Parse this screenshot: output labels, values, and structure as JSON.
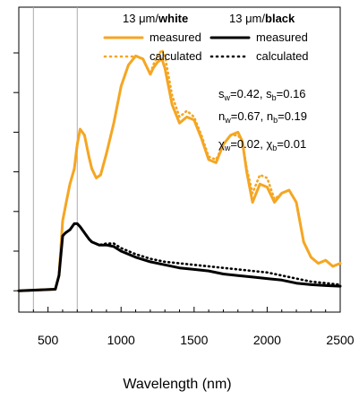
{
  "chart_data": {
    "type": "line",
    "xlabel": "Wavelength (nm)",
    "ylabel": "",
    "xlim": [
      300,
      2500
    ],
    "ylim": [
      0,
      1
    ],
    "x_ticks": [
      500,
      1000,
      1500,
      2000,
      2500
    ],
    "x_tick_labels": [
      "500",
      "1000",
      "1500",
      "2000",
      "2500"
    ],
    "y_tick_values": [
      0.07,
      0.2,
      0.33,
      0.46,
      0.59,
      0.72,
      0.85
    ],
    "vertical_lines": [
      400,
      700
    ],
    "legend": {
      "placement": "top",
      "groups": [
        {
          "head": "13 μm/",
          "head_bold": "white",
          "color": "#f5a623",
          "entries": [
            {
              "label": "measured",
              "style": "solid"
            },
            {
              "label": "calculated",
              "style": "dotted"
            }
          ]
        },
        {
          "head": "13 μm/",
          "head_bold": "black",
          "color": "#000000",
          "entries": [
            {
              "label": "measured",
              "style": "solid"
            },
            {
              "label": "calculated",
              "style": "dotted"
            }
          ]
        }
      ]
    },
    "annotations": [
      {
        "parts": [
          {
            "t": "s"
          },
          {
            "t": "w",
            "sub": true
          },
          {
            "t": "=0.42, s"
          },
          {
            "t": "b",
            "sub": true
          },
          {
            "t": "=0.16"
          }
        ]
      },
      {
        "parts": [
          {
            "t": "n"
          },
          {
            "t": "w",
            "sub": true
          },
          {
            "t": "=0.67, n"
          },
          {
            "t": "b",
            "sub": true
          },
          {
            "t": "=0.19"
          }
        ]
      },
      {
        "parts": [
          {
            "t": "χ"
          },
          {
            "t": "w",
            "sub": true
          },
          {
            "t": "=0.02, χ"
          },
          {
            "t": "b",
            "sub": true
          },
          {
            "t": "=0.01"
          }
        ]
      }
    ],
    "series": [
      {
        "name": "13 μm/white measured",
        "color": "#f5a623",
        "style": "solid",
        "x": [
          300,
          550,
          575,
          600,
          625,
          650,
          680,
          700,
          720,
          750,
          780,
          800,
          830,
          860,
          900,
          950,
          1000,
          1050,
          1100,
          1150,
          1180,
          1200,
          1220,
          1250,
          1280,
          1300,
          1350,
          1400,
          1450,
          1500,
          1550,
          1600,
          1650,
          1700,
          1750,
          1800,
          1830,
          1860,
          1900,
          1950,
          2000,
          2050,
          2100,
          2150,
          2200,
          2250,
          2300,
          2350,
          2400,
          2450,
          2500
        ],
        "y": [
          0.07,
          0.075,
          0.12,
          0.3,
          0.36,
          0.42,
          0.47,
          0.55,
          0.6,
          0.58,
          0.51,
          0.47,
          0.44,
          0.45,
          0.52,
          0.62,
          0.74,
          0.81,
          0.84,
          0.83,
          0.8,
          0.78,
          0.8,
          0.82,
          0.83,
          0.8,
          0.68,
          0.62,
          0.64,
          0.63,
          0.57,
          0.5,
          0.49,
          0.55,
          0.58,
          0.59,
          0.56,
          0.46,
          0.36,
          0.42,
          0.41,
          0.36,
          0.39,
          0.4,
          0.36,
          0.23,
          0.18,
          0.16,
          0.17,
          0.15,
          0.16
        ]
      },
      {
        "name": "13 μm/white calculated",
        "color": "#f5a623",
        "style": "dotted",
        "x": [
          300,
          550,
          575,
          600,
          625,
          650,
          680,
          700,
          720,
          750,
          780,
          800,
          830,
          860,
          900,
          950,
          1000,
          1050,
          1100,
          1150,
          1180,
          1200,
          1220,
          1250,
          1280,
          1300,
          1350,
          1400,
          1450,
          1500,
          1550,
          1600,
          1650,
          1700,
          1750,
          1800,
          1830,
          1860,
          1900,
          1950,
          2000,
          2050,
          2100,
          2150,
          2200,
          2250,
          2300,
          2350,
          2400,
          2450,
          2500
        ],
        "y": [
          0.07,
          0.075,
          0.12,
          0.3,
          0.36,
          0.42,
          0.47,
          0.55,
          0.6,
          0.58,
          0.51,
          0.47,
          0.44,
          0.45,
          0.52,
          0.62,
          0.74,
          0.81,
          0.84,
          0.83,
          0.8,
          0.78,
          0.81,
          0.84,
          0.86,
          0.84,
          0.71,
          0.64,
          0.66,
          0.64,
          0.58,
          0.51,
          0.5,
          0.55,
          0.58,
          0.58,
          0.56,
          0.47,
          0.39,
          0.45,
          0.44,
          0.37,
          0.39,
          0.4,
          0.36,
          0.23,
          0.18,
          0.16,
          0.17,
          0.15,
          0.16
        ]
      },
      {
        "name": "13 μm/black measured",
        "color": "#000000",
        "style": "solid",
        "x": [
          300,
          550,
          575,
          600,
          620,
          650,
          680,
          700,
          720,
          750,
          780,
          800,
          850,
          900,
          950,
          1000,
          1100,
          1200,
          1300,
          1400,
          1500,
          1600,
          1700,
          1800,
          1900,
          2000,
          2100,
          2200,
          2300,
          2400,
          2500
        ],
        "y": [
          0.07,
          0.075,
          0.12,
          0.25,
          0.26,
          0.27,
          0.29,
          0.29,
          0.28,
          0.26,
          0.24,
          0.23,
          0.22,
          0.22,
          0.215,
          0.2,
          0.18,
          0.165,
          0.155,
          0.145,
          0.14,
          0.135,
          0.125,
          0.12,
          0.115,
          0.11,
          0.105,
          0.095,
          0.09,
          0.087,
          0.085
        ]
      },
      {
        "name": "13 μm/black calculated",
        "color": "#000000",
        "style": "dotted",
        "x": [
          300,
          550,
          575,
          600,
          620,
          650,
          680,
          700,
          720,
          750,
          780,
          800,
          850,
          900,
          950,
          1000,
          1100,
          1200,
          1300,
          1400,
          1500,
          1600,
          1700,
          1800,
          1900,
          2000,
          2100,
          2200,
          2300,
          2400,
          2500
        ],
        "y": [
          0.07,
          0.075,
          0.12,
          0.25,
          0.26,
          0.27,
          0.29,
          0.29,
          0.28,
          0.26,
          0.24,
          0.23,
          0.22,
          0.225,
          0.225,
          0.21,
          0.19,
          0.175,
          0.165,
          0.16,
          0.155,
          0.15,
          0.145,
          0.14,
          0.135,
          0.13,
          0.12,
          0.11,
          0.1,
          0.095,
          0.09
        ]
      }
    ]
  }
}
